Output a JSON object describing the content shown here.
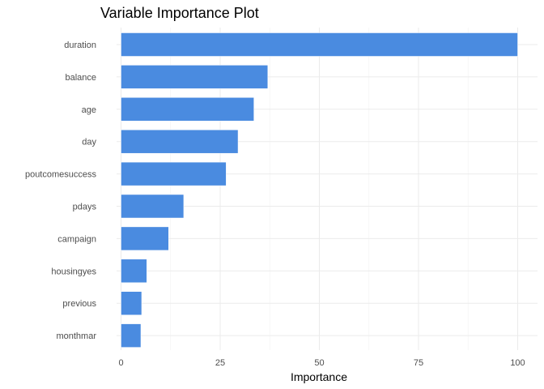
{
  "chart_data": {
    "type": "bar",
    "orientation": "horizontal",
    "title": "Variable Importance Plot",
    "xlabel": "Importance",
    "ylabel": "",
    "categories": [
      "duration",
      "balance",
      "age",
      "day",
      "poutcomesuccess",
      "pdays",
      "campaign",
      "housingyes",
      "previous",
      "monthmar"
    ],
    "values": [
      100,
      37,
      33.5,
      29.5,
      26.5,
      15.8,
      12,
      6.5,
      5.2,
      5
    ],
    "xlim": [
      0,
      100
    ],
    "xticks": [
      0,
      25,
      50,
      75,
      100
    ],
    "grid": true,
    "legend": "none",
    "bar_color": "#4a8be0"
  }
}
